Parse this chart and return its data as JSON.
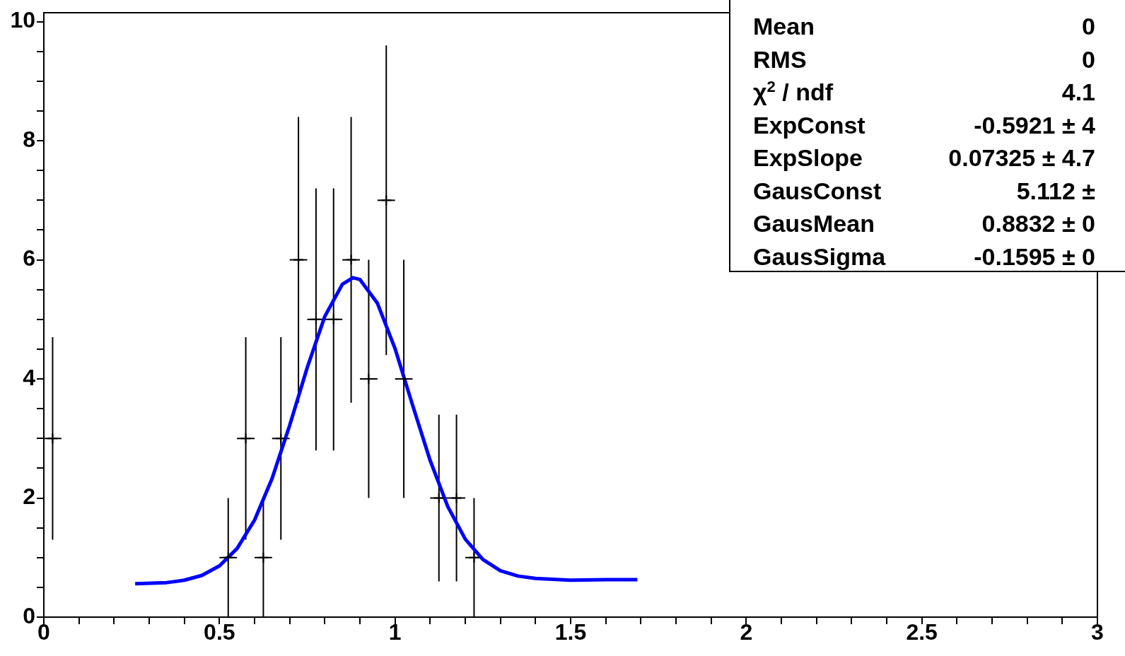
{
  "chart_data": {
    "type": "scatter",
    "xlim": [
      0,
      3
    ],
    "ylim": [
      0,
      10.15
    ],
    "xticks": [
      0,
      {
        "value": 0.1,
        "label": null
      },
      {
        "value": 0.2,
        "label": null
      },
      {
        "value": 0.3,
        "label": null
      },
      {
        "value": 0.4,
        "label": null
      },
      0.5,
      {
        "value": 0.6,
        "label": null
      },
      {
        "value": 0.7,
        "label": null
      },
      {
        "value": 0.8,
        "label": null
      },
      {
        "value": 0.9,
        "label": null
      },
      1,
      {
        "value": 1.1,
        "label": null
      },
      {
        "value": 1.2,
        "label": null
      },
      {
        "value": 1.3,
        "label": null
      },
      {
        "value": 1.4,
        "label": null
      },
      1.5,
      {
        "value": 1.6,
        "label": null
      },
      {
        "value": 1.7,
        "label": null
      },
      {
        "value": 1.8,
        "label": null
      },
      {
        "value": 1.9,
        "label": null
      },
      2,
      {
        "value": 2.1,
        "label": null
      },
      {
        "value": 2.2,
        "label": null
      },
      {
        "value": 2.3,
        "label": null
      },
      {
        "value": 2.4,
        "label": null
      },
      2.5,
      {
        "value": 2.6,
        "label": null
      },
      {
        "value": 2.7,
        "label": null
      },
      {
        "value": 2.8,
        "label": null
      },
      {
        "value": 2.9,
        "label": null
      },
      3
    ],
    "yticks": [
      0,
      {
        "value": 0.5,
        "label": null
      },
      {
        "value": 1,
        "label": null
      },
      {
        "value": 1.5,
        "label": null
      },
      2,
      {
        "value": 2.5,
        "label": null
      },
      {
        "value": 3,
        "label": null
      },
      {
        "value": 3.5,
        "label": null
      },
      4,
      {
        "value": 4.5,
        "label": null
      },
      {
        "value": 5,
        "label": null
      },
      {
        "value": 5.5,
        "label": null
      },
      6,
      {
        "value": 6.5,
        "label": null
      },
      {
        "value": 7,
        "label": null
      },
      {
        "value": 7.5,
        "label": null
      },
      8,
      {
        "value": 8.5,
        "label": null
      },
      {
        "value": 9,
        "label": null
      },
      {
        "value": 9.5,
        "label": null
      },
      10
    ],
    "series": [
      {
        "color": "#000000",
        "marker": "cross",
        "x": [
          0.025,
          0.525,
          0.575,
          0.625,
          0.675,
          0.725,
          0.775,
          0.825,
          0.875,
          0.925,
          0.975,
          1.025,
          1.125,
          1.175,
          1.225
        ],
        "values": [
          3,
          1,
          3,
          1,
          3,
          6,
          5,
          5,
          6,
          4,
          7,
          4,
          2,
          2,
          1
        ],
        "errors": [
          1.7,
          1,
          1.7,
          1,
          1.7,
          2.4,
          2.2,
          2.2,
          2.4,
          2,
          2.6,
          2,
          1.4,
          1.4,
          1
        ],
        "xerrors": [
          0.025,
          0.025,
          0.025,
          0.025,
          0.025,
          0.025,
          0.025,
          0.025,
          0.025,
          0.025,
          0.025,
          0.025,
          0.025,
          0.025,
          0.025
        ]
      },
      {
        "type": "line",
        "color": "#0000ff",
        "x": [
          0.26,
          0.35,
          0.4,
          0.45,
          0.5,
          0.55,
          0.6,
          0.65,
          0.7,
          0.75,
          0.8,
          0.85,
          0.88,
          0.9,
          0.95,
          1.0,
          1.05,
          1.1,
          1.15,
          1.2,
          1.25,
          1.3,
          1.35,
          1.4,
          1.5,
          1.6,
          1.69
        ],
        "values": [
          0.56,
          0.58,
          0.62,
          0.7,
          0.86,
          1.15,
          1.63,
          2.33,
          3.22,
          4.19,
          5.05,
          5.59,
          5.7,
          5.67,
          5.27,
          4.51,
          3.56,
          2.63,
          1.86,
          1.31,
          0.97,
          0.78,
          0.69,
          0.65,
          0.62,
          0.63,
          0.63
        ]
      }
    ],
    "annotations": [
      "Mean",
      "0",
      "RMS",
      "0",
      "χ$^{2}$ / ndf",
      "4.1",
      "ExpConst",
      "-0.5921 ± 4",
      "ExpSlope",
      "0.07325 ± 4.7",
      "GausConst",
      "5.112 ±",
      "GausMean",
      "0.8832 ± 0",
      "GausSigma",
      "-0.1595 ± 0"
    ]
  }
}
